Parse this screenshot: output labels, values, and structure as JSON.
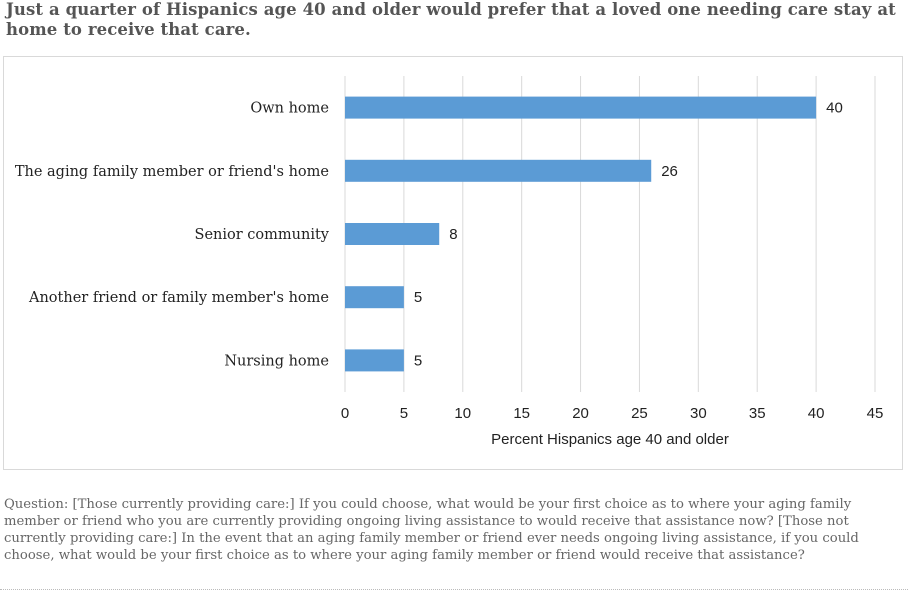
{
  "title": "Just a quarter of Hispanics age 40 and older would prefer that a loved one needing care stay at home to receive that care.",
  "note": "Question: [Those currently providing care:] If you could choose, what would be your first choice as to where your aging family member or friend who you are currently providing ongoing living assistance to would receive that assistance now? [Those not currently providing care:] In the event that an aging family member or friend ever needs ongoing living assistance, if you could choose, what would be your first choice as to where your aging family member or friend would receive that assistance?",
  "colors": {
    "bar": "#5b9bd5",
    "grid": "#d9d9d9",
    "text": "#222222"
  },
  "chart_data": {
    "type": "bar",
    "orientation": "horizontal",
    "categories": [
      "Own home",
      "The aging family member or friend's home",
      "Senior community",
      "Another friend or family member's home",
      "Nursing home"
    ],
    "values": [
      40,
      26,
      8,
      5,
      5
    ],
    "xlabel": "Percent Hispanics age 40 and older",
    "ylabel": "",
    "xlim": [
      0,
      45
    ],
    "xticks": [
      0,
      5,
      10,
      15,
      20,
      25,
      30,
      35,
      40,
      45
    ],
    "grid": true,
    "data_labels": true
  }
}
